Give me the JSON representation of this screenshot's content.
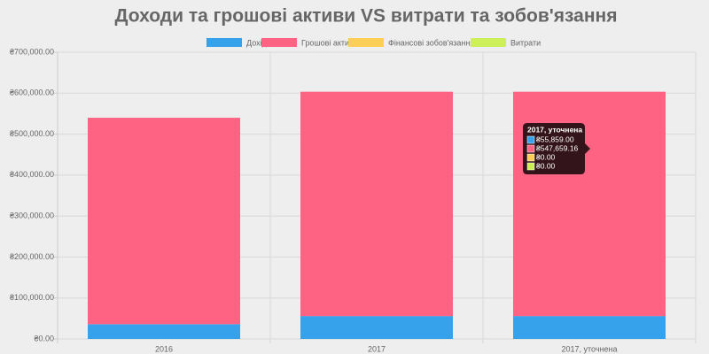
{
  "chart_data": {
    "type": "stacked_bar",
    "title": "Доходи та грошові активи VS витрати та зобов'язання",
    "categories": [
      "2016",
      "2017",
      "2017, уточнена"
    ],
    "series": [
      {
        "name": "Дохід",
        "color": "#36a2eb",
        "values": [
          36000,
          55859,
          55859
        ],
        "value_labels": [
          null,
          null,
          "₴55,859.00"
        ]
      },
      {
        "name": "Грошові активи",
        "color": "#ff6384",
        "values": [
          504000,
          547659.16,
          547659.16
        ],
        "value_labels": [
          null,
          null,
          "₴547,659.16"
        ]
      },
      {
        "name": "Фінансові зобов'язання",
        "color": "#ffce56",
        "values": [
          0,
          0,
          0
        ],
        "value_labels": [
          null,
          null,
          "₴0.00"
        ]
      },
      {
        "name": "Витрати",
        "color": "#cdf05a",
        "values": [
          0,
          0,
          0
        ],
        "value_labels": [
          null,
          null,
          "₴0.00"
        ]
      }
    ],
    "ylim": [
      0,
      700000
    ],
    "yticks": [
      {
        "value": 0,
        "label": "₴0.00"
      },
      {
        "value": 100000,
        "label": "₴100,000.00"
      },
      {
        "value": 200000,
        "label": "₴200,000.00"
      },
      {
        "value": 300000,
        "label": "₴300,000.00"
      },
      {
        "value": 400000,
        "label": "₴400,000.00"
      },
      {
        "value": 500000,
        "label": "₴500,000.00"
      },
      {
        "value": 600000,
        "label": "₴600,000.00"
      },
      {
        "value": 700000,
        "label": "₴700,000.00"
      }
    ],
    "grid": true
  }
}
